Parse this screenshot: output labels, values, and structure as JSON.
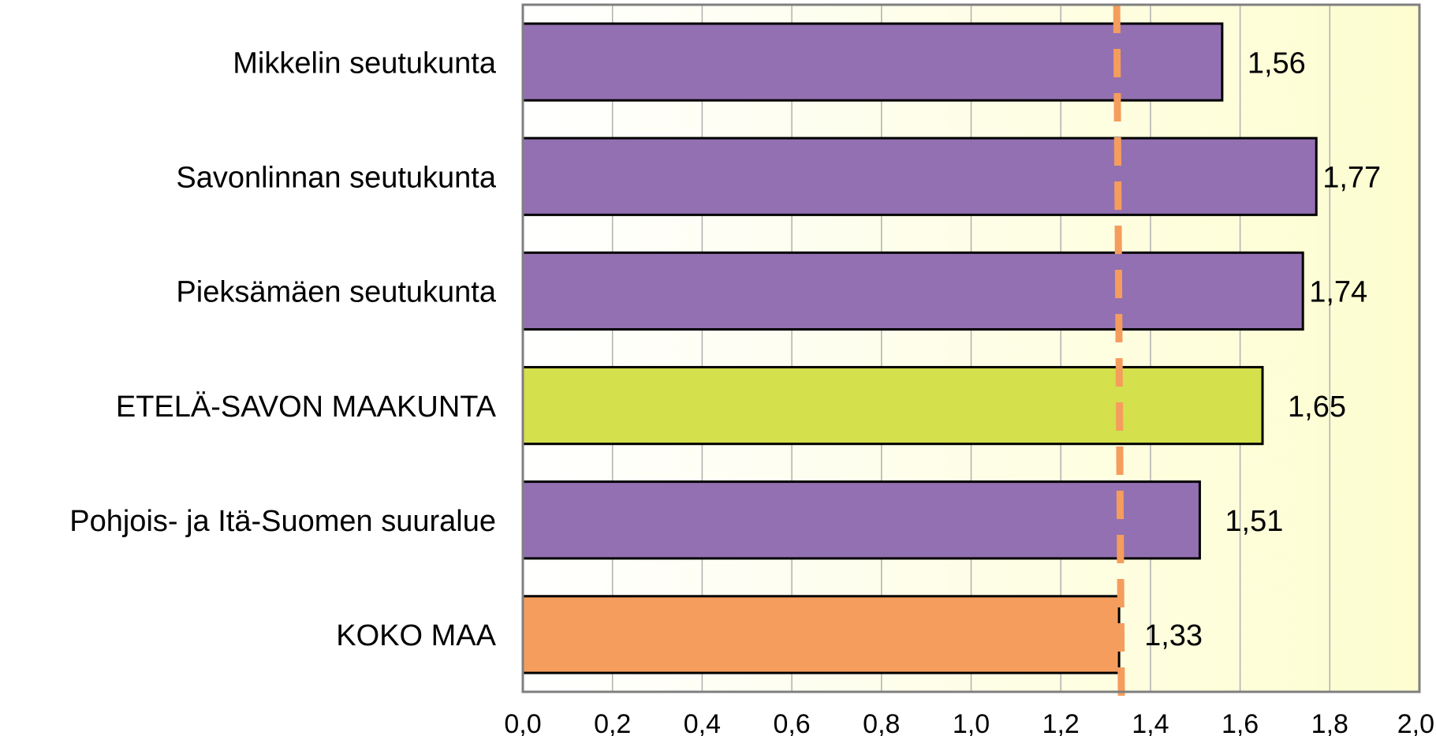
{
  "chart_data": {
    "type": "bar",
    "orientation": "horizontal",
    "title": "",
    "xlabel": "",
    "ylabel": "",
    "categories": [
      "Mikkelin seutukunta",
      "Savonlinnan seutukunta",
      "Pieksämäen seutukunta",
      "ETELÄ-SAVON MAAKUNTA",
      "Pohjois- ja Itä-Suomen suuralue",
      "KOKO MAA"
    ],
    "values": [
      1.56,
      1.77,
      1.74,
      1.65,
      1.51,
      1.33
    ],
    "value_labels": [
      "1,56",
      "1,77",
      "1,74",
      "1,65",
      "1,51",
      "1,33"
    ],
    "bar_colors": [
      "#9370b1",
      "#9370b1",
      "#9370b1",
      "#d4e04c",
      "#9370b1",
      "#f59d5d"
    ],
    "xlim": [
      0,
      2.0
    ],
    "x_ticks": [
      0,
      0.2,
      0.4,
      0.6,
      0.8,
      1.0,
      1.2,
      1.4,
      1.6,
      1.8,
      2.0
    ],
    "x_tick_labels": [
      "0,0",
      "0,2",
      "0,4",
      "0,6",
      "0,8",
      "1,0",
      "1,2",
      "1,4",
      "1,6",
      "1,8",
      "2,0"
    ],
    "reference_line": {
      "value": 1.33,
      "color": "#f59d5d",
      "style": "dashed"
    },
    "plot_background": {
      "gradient_from": "#ffffff",
      "gradient_to": "#fdfdd0"
    },
    "grid": true,
    "gridline_color": "#b0b0b0",
    "axis_color": "#7f7f7f",
    "bar_border_color": "#000000"
  }
}
